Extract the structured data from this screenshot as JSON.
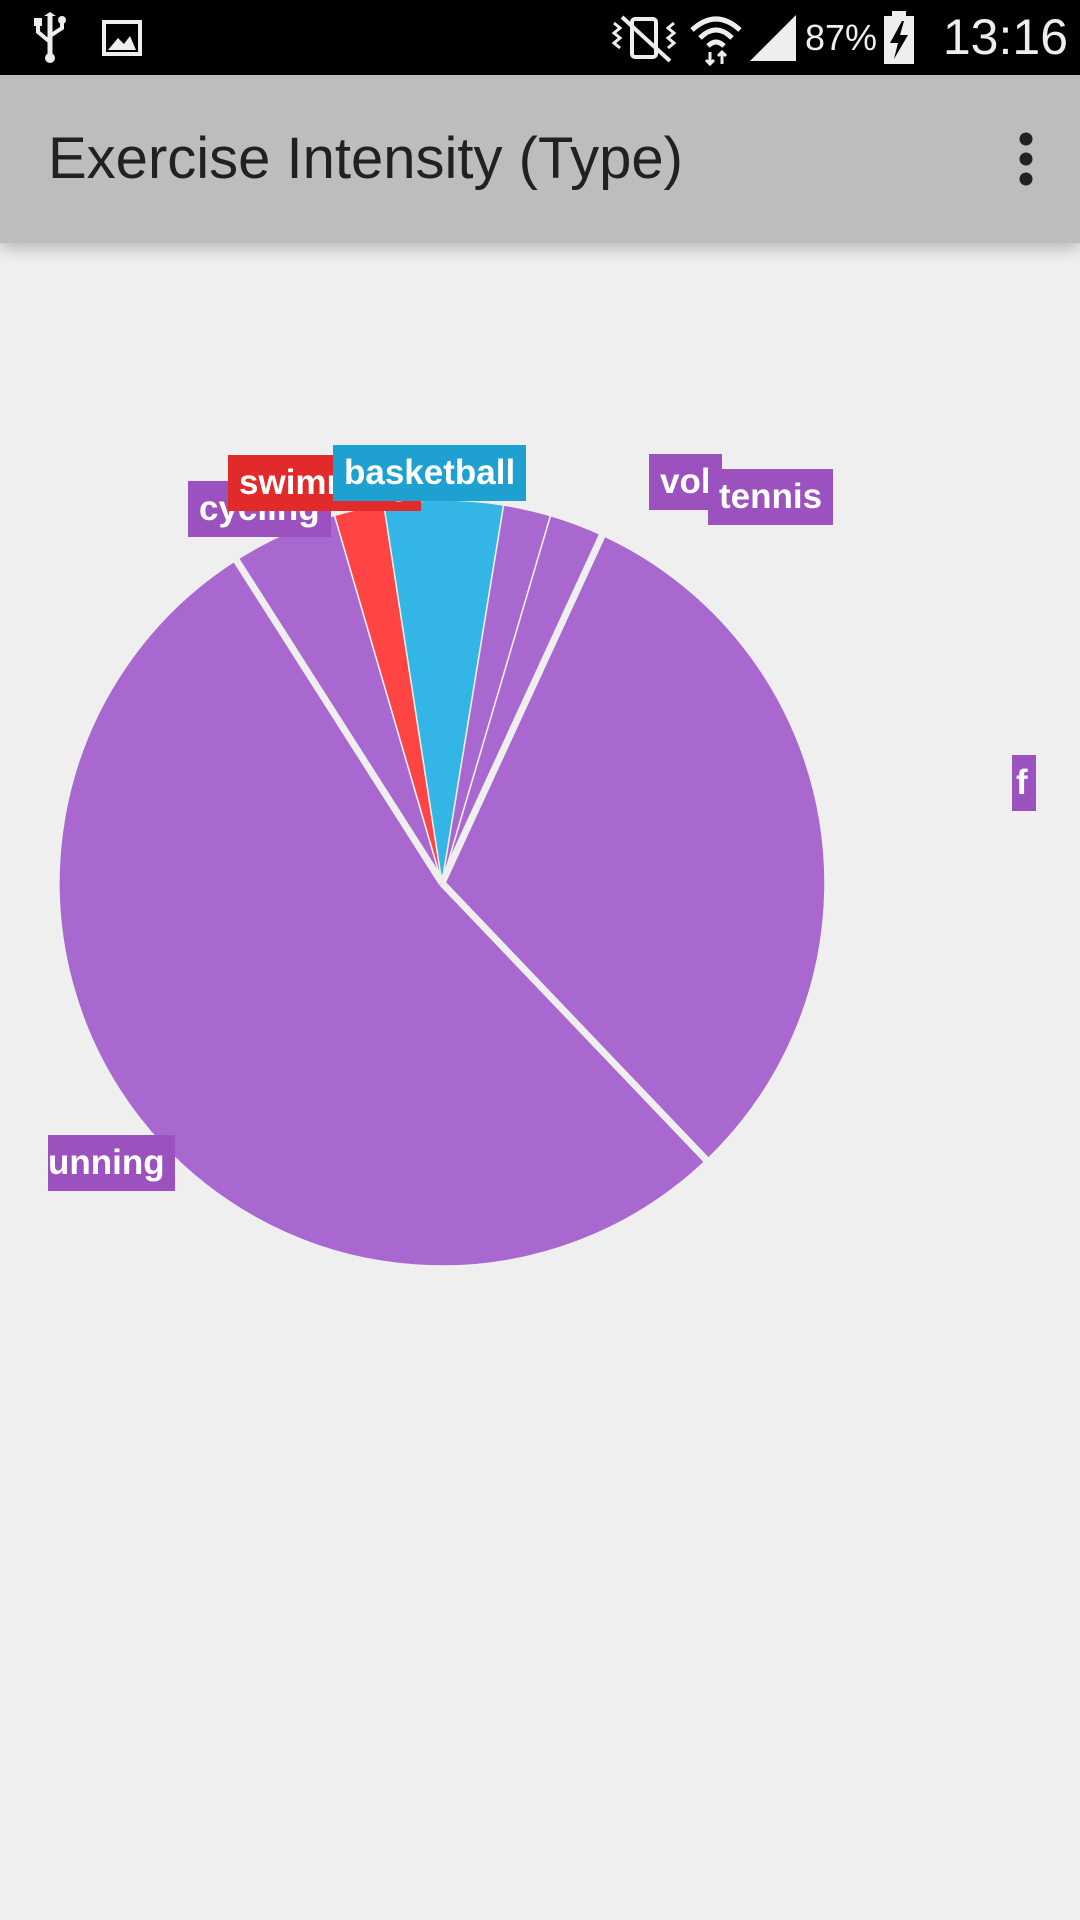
{
  "status_bar": {
    "battery_percent": "87%",
    "time": "13:16",
    "icons": [
      "usb-icon",
      "image-icon",
      "mute-vibrate-icon",
      "wifi-icon",
      "signal-icon",
      "battery-charging-icon"
    ]
  },
  "app_bar": {
    "title": "Exercise Intensity (Type)",
    "menu_icon": "more-vert-icon"
  },
  "colors": {
    "purple": "#a967d0",
    "purple_label": "#9b52bf",
    "red": "#ff4444",
    "red_label": "#e32a2a",
    "blue": "#33b5e5",
    "blue_label": "#1ea1d0",
    "background": "#efeff0",
    "app_bar": "#bdbdbd"
  },
  "chart_data": {
    "type": "pie",
    "start_angle_deg": -32.5,
    "slices": [
      {
        "label": "cycling",
        "value": 4.5,
        "color": "#a967d0",
        "label_color": "#9b52bf",
        "visible_label": "cycling"
      },
      {
        "label": "swimming",
        "value": 2.1,
        "color": "#ff4444",
        "label_color": "#e32a2a",
        "visible_label": "swimming"
      },
      {
        "label": "basketball",
        "value": 5.0,
        "color": "#33b5e5",
        "label_color": "#1ea1d0",
        "visible_label": "basketball"
      },
      {
        "label": "volleyball",
        "value": 2.0,
        "color": "#a967d0",
        "label_color": "#9b52bf",
        "visible_label": "vol"
      },
      {
        "label": "tennis",
        "value": 2.3,
        "color": "#a967d0",
        "label_color": "#9b52bf",
        "visible_label": "tennis"
      },
      {
        "label": "",
        "value": 31.0,
        "color": "#a967d0",
        "label_color": "#9b52bf",
        "visible_label": "f"
      },
      {
        "label": "running",
        "value": 53.1,
        "color": "#a967d0",
        "label_color": "#9b52bf",
        "visible_label": "unning"
      }
    ]
  }
}
